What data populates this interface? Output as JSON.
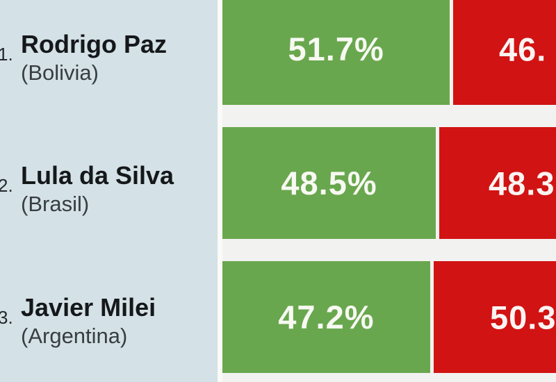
{
  "colors": {
    "green": "#69a74e",
    "red": "#d11313",
    "panel": "#d4e1e6",
    "background": "#f2f2f1"
  },
  "rows": [
    {
      "rank": "1.",
      "name": "Rodrigo Paz",
      "country": "(Bolivia)",
      "green_pct": 51.7,
      "green_label": "51.7%",
      "red_label_visible": "46."
    },
    {
      "rank": "2.",
      "name": "Lula da Silva",
      "country": "(Brasil)",
      "green_pct": 48.5,
      "green_label": "48.5%",
      "red_label_visible": "48.3"
    },
    {
      "rank": "3.",
      "name": "Javier Milei",
      "country": "(Argentina)",
      "green_pct": 47.2,
      "green_label": "47.2%",
      "red_label_visible": "50.3"
    }
  ],
  "chart_data": {
    "type": "bar",
    "orientation": "horizontal_stacked",
    "categories": [
      "Rodrigo Paz (Bolivia)",
      "Lula da Silva (Brasil)",
      "Javier Milei (Argentina)"
    ],
    "ranks": [
      "1.",
      "2.",
      "3."
    ],
    "series": [
      {
        "name": "green-share",
        "color": "#69a74e",
        "values": [
          51.7,
          48.5,
          47.2
        ]
      },
      {
        "name": "red-share",
        "color": "#d11313",
        "values_visible_text": [
          "46.",
          "48.3",
          "50.3"
        ]
      }
    ],
    "value_unit": "%",
    "legend": "none",
    "layout_hints": "image is a crop: rank numbers clipped at left edge, red bars and their labels clipped at right edge, first bar clipped at top"
  }
}
